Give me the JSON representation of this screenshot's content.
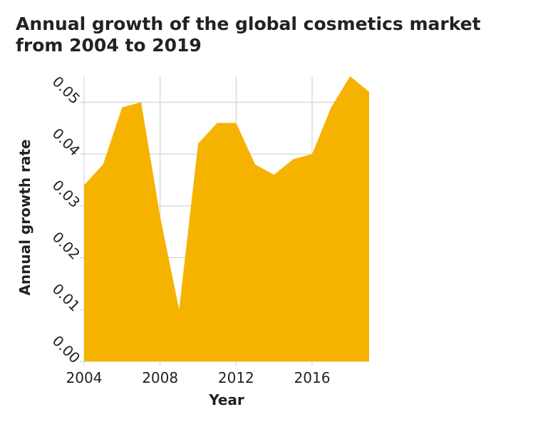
{
  "chart_data": {
    "type": "area",
    "title": "Annual growth of the global cosmetics market from 2004 to 2019",
    "x_label": "Year",
    "y_label": "Annual growth rate",
    "x": [
      2004,
      2005,
      2006,
      2007,
      2008,
      2009,
      2010,
      2011,
      2012,
      2013,
      2014,
      2015,
      2016,
      2017,
      2018,
      2019
    ],
    "values": [
      0.034,
      0.038,
      0.049,
      0.05,
      0.028,
      0.01,
      0.042,
      0.046,
      0.046,
      0.038,
      0.036,
      0.039,
      0.04,
      0.049,
      0.055,
      0.052
    ],
    "color": "#f5b300",
    "xlim": [
      2004,
      2019
    ],
    "xticks": [
      2004,
      2008,
      2012,
      2016
    ],
    "ylim": [
      0,
      0.055
    ],
    "yticks": [
      {
        "value": 0,
        "label": "0.00"
      },
      {
        "value": 0.01,
        "label": "0.01"
      },
      {
        "value": 0.02,
        "label": "0.02"
      },
      {
        "value": 0.03,
        "label": "0.03"
      },
      {
        "value": 0.04,
        "label": "0.04"
      },
      {
        "value": 0.05,
        "label": "0.05"
      }
    ],
    "grid": true
  }
}
